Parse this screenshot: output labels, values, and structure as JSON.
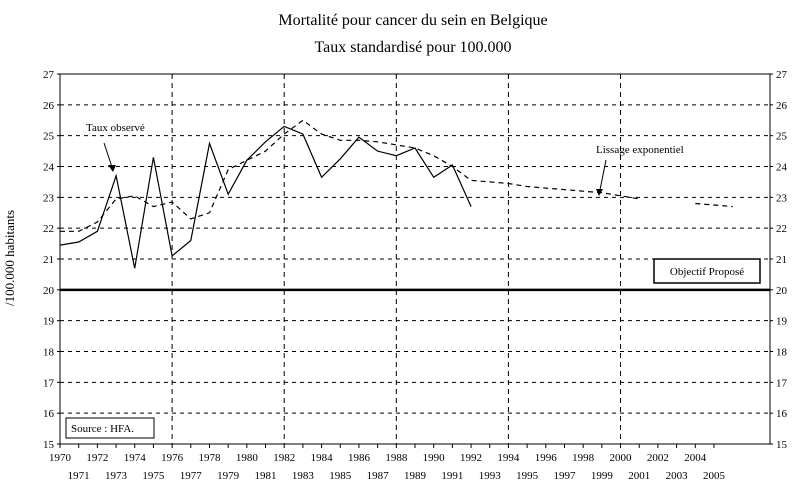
{
  "chart_data": {
    "type": "line",
    "title": "Mortalité pour cancer du sein en Belgique",
    "subtitle": "Taux standardisé pour 100.000",
    "ylabel": "/100.000 habitants",
    "xlim": [
      1970,
      2008
    ],
    "ylim": [
      15,
      27
    ],
    "grid": true,
    "x_ticks": [
      1970,
      1971,
      1972,
      1973,
      1974,
      1975,
      1976,
      1977,
      1978,
      1979,
      1980,
      1981,
      1982,
      1983,
      1984,
      1985,
      1986,
      1987,
      1988,
      1989,
      1990,
      1991,
      1992,
      1993,
      1994,
      1995,
      1996,
      1997,
      1998,
      1999,
      2000,
      2001,
      2002,
      2003,
      2004,
      2005
    ],
    "y_ticks": [
      15,
      16,
      17,
      18,
      19,
      20,
      21,
      22,
      23,
      24,
      25,
      26,
      27
    ],
    "series": [
      {
        "name": "Taux observé",
        "style": "solid",
        "x": [
          1970,
          1971,
          1972,
          1973,
          1974,
          1975,
          1976,
          1977,
          1978,
          1979,
          1980,
          1981,
          1982,
          1983,
          1984,
          1985,
          1986,
          1987,
          1988,
          1989,
          1990,
          1991,
          1992
        ],
        "y": [
          21.45,
          21.55,
          21.9,
          23.7,
          20.7,
          24.3,
          21.1,
          21.6,
          24.75,
          23.1,
          24.2,
          24.8,
          25.3,
          25.05,
          23.65,
          24.25,
          24.95,
          24.5,
          24.35,
          24.6,
          23.65,
          24.05,
          22.7
        ]
      },
      {
        "name": "Lissage exponentiel",
        "style": "dashed",
        "x": [
          1970,
          1971,
          1972,
          1973,
          1974,
          1975,
          1976,
          1977,
          1978,
          1979,
          1980,
          1981,
          1982,
          1983,
          1984,
          1985,
          1986,
          1987,
          1988,
          1989,
          1990,
          1991,
          1992,
          1993,
          1994,
          1995,
          1996,
          1997,
          1998,
          1999,
          2000,
          2001
        ],
        "y": [
          21.9,
          21.9,
          22.2,
          22.95,
          23.05,
          22.7,
          22.85,
          22.3,
          22.5,
          23.9,
          24.2,
          24.5,
          25.05,
          25.5,
          25.05,
          24.85,
          24.85,
          24.8,
          24.7,
          24.6,
          24.35,
          24.0,
          23.55,
          23.5,
          23.45,
          23.35,
          23.3,
          23.25,
          23.2,
          23.15,
          23.05,
          22.95
        ]
      },
      {
        "name": "",
        "style": "dashed",
        "x": [
          2004,
          2005,
          2006
        ],
        "y": [
          22.8,
          22.75,
          22.7
        ]
      }
    ],
    "target": {
      "label": "Objectif Proposé",
      "value": 20
    },
    "annotations": {
      "observed": "Taux observé",
      "smoothing": "Lissage exponentiel",
      "source": "Source : HFA."
    }
  }
}
